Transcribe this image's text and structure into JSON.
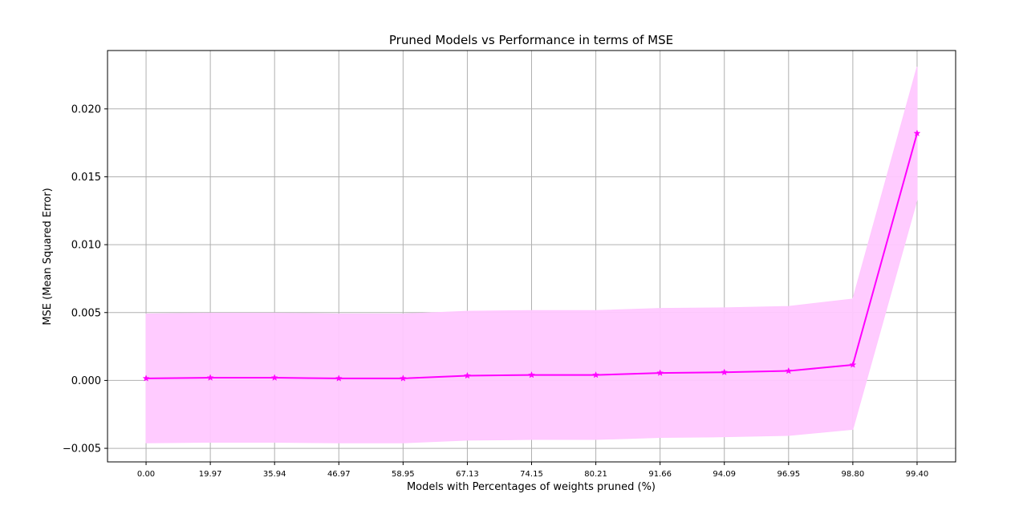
{
  "chart_data": {
    "type": "line",
    "title": "Pruned Models vs Performance in terms of MSE",
    "xlabel": "Models with Percentages of weights pruned (%)",
    "ylabel": "MSE (Mean Squared Error)",
    "categories": [
      "0.00",
      "19.97",
      "35.94",
      "46.97",
      "58.95",
      "67.13",
      "74.15",
      "80.21",
      "91.66",
      "94.09",
      "96.95",
      "98.80",
      "99.40"
    ],
    "series": [
      {
        "values": [
          0.00015,
          0.0002,
          0.0002,
          0.00015,
          0.00015,
          0.00035,
          0.0004,
          0.0004,
          0.00055,
          0.0006,
          0.0007,
          0.00115,
          0.0182
        ],
        "lower": [
          -0.0046,
          -0.00455,
          -0.00455,
          -0.0046,
          -0.0046,
          -0.0044,
          -0.00435,
          -0.00435,
          -0.0042,
          -0.00415,
          -0.00405,
          -0.0036,
          0.0133
        ],
        "upper": [
          0.0049,
          0.00495,
          0.00495,
          0.0049,
          0.0049,
          0.0051,
          0.00515,
          0.00515,
          0.0053,
          0.00535,
          0.00545,
          0.006,
          0.0231
        ]
      }
    ],
    "yticks": [
      "−0.005",
      "0.000",
      "0.005",
      "0.010",
      "0.015",
      "0.020"
    ],
    "ylim": [
      -0.006,
      0.0243
    ],
    "grid": true,
    "colors": {
      "line": "#ff00ff",
      "band": "#ffc8ff",
      "grid": "#b0b0b0"
    },
    "marker": "star"
  }
}
